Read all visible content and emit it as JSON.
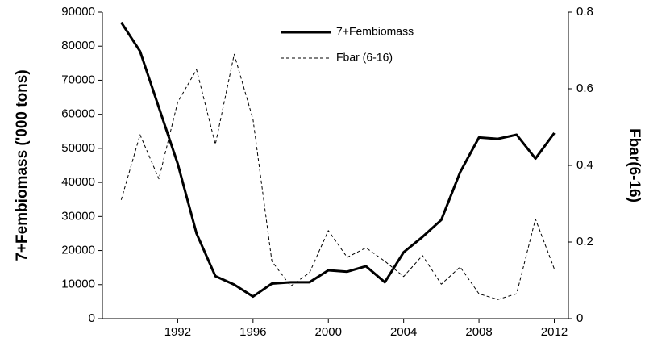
{
  "chart_data": {
    "type": "line",
    "ylabel": "7+Fembiomass ('000 tons)",
    "y2label": "Fbar(6-16)",
    "x": [
      1989,
      1990,
      1991,
      1992,
      1993,
      1994,
      1995,
      1996,
      1997,
      1998,
      1999,
      2000,
      2001,
      2002,
      2003,
      2004,
      2005,
      2006,
      2007,
      2008,
      2009,
      2010,
      2011,
      2012
    ],
    "series": [
      {
        "name": "7+Fembiomass",
        "color": "#000000",
        "dash": "solid",
        "values": [
          87000,
          78500,
          62000,
          45500,
          25000,
          12500,
          10000,
          6500,
          10300,
          10700,
          10700,
          14200,
          13800,
          15400,
          10700,
          19500,
          24000,
          29000,
          43000,
          53200,
          52800,
          54000,
          47000,
          54500
        ]
      },
      {
        "name": "Fbar (6-16)",
        "color": "#000000",
        "dash": "dashed",
        "axis": "y2",
        "values": [
          0.31,
          0.48,
          0.365,
          0.565,
          0.65,
          0.455,
          0.69,
          0.52,
          0.15,
          0.085,
          0.12,
          0.23,
          0.16,
          0.185,
          0.15,
          0.11,
          0.165,
          0.09,
          0.135,
          0.065,
          0.05,
          0.065,
          0.26,
          0.13
        ]
      }
    ],
    "xlim": [
      1988,
      2012.75
    ],
    "xticks": [
      1992,
      1996,
      2000,
      2004,
      2008,
      2012
    ],
    "ylim": [
      0,
      90000
    ],
    "yticks": [
      0,
      10000,
      20000,
      30000,
      40000,
      50000,
      60000,
      70000,
      80000,
      90000
    ],
    "y2lim": [
      0,
      0.8
    ],
    "y2ticks": [
      0,
      0.2,
      0.4,
      0.6,
      0.8
    ],
    "grid": false,
    "legend": "top"
  }
}
